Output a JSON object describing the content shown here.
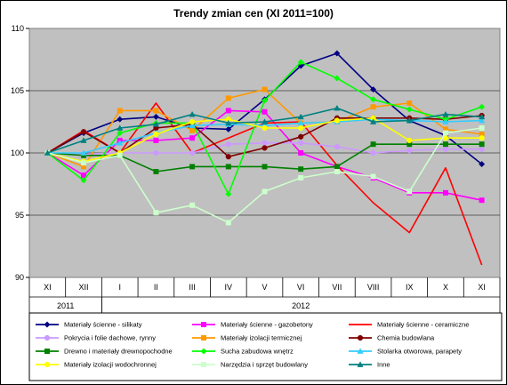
{
  "chart_data": {
    "type": "line",
    "title": "Trendy zmian cen (XI 2011=100)",
    "categories": [
      "XI",
      "XII",
      "I",
      "II",
      "III",
      "IV",
      "V",
      "VI",
      "VII",
      "VIII",
      "IX",
      "X",
      "XI"
    ],
    "year_labels": [
      {
        "label": "2011",
        "from": 0,
        "to": 1
      },
      {
        "label": "2012",
        "from": 2,
        "to": 12
      }
    ],
    "ylim": [
      90,
      110
    ],
    "yticks": [
      90,
      95,
      100,
      105,
      110
    ],
    "grid": true,
    "legend_position": "bottom",
    "plot_background": "#c0c0c0",
    "series": [
      {
        "name": "Materiały ścienne - silikaty",
        "color": "#000080",
        "marker": "diamond",
        "values": [
          100,
          101.6,
          102.7,
          102.9,
          102.0,
          101.9,
          104.3,
          107.0,
          108.0,
          105.1,
          102.6,
          101.4,
          99.1
        ]
      },
      {
        "name": "Materiały ścienne - gazobetony",
        "color": "#ff00ff",
        "marker": "square",
        "values": [
          100,
          98.2,
          101.0,
          101.0,
          101.2,
          103.4,
          103.3,
          100.0,
          98.9,
          98.0,
          96.8,
          96.8,
          96.2
        ]
      },
      {
        "name": "Materiały ścienne - ceramiczne",
        "color": "#ff0000",
        "marker": "none",
        "values": [
          100,
          101.8,
          100.0,
          104.0,
          100.0,
          101.2,
          102.4,
          102.5,
          99.0,
          96.0,
          93.6,
          98.8,
          91.0
        ]
      },
      {
        "name": "Pokrycia i folie dachowe, rynny",
        "color": "#cc99ff",
        "marker": "circle",
        "values": [
          100,
          99.9,
          100.0,
          100.0,
          100.0,
          100.7,
          100.8,
          100.8,
          100.5,
          100.0,
          100.2,
          100.3,
          100.3
        ]
      },
      {
        "name": "Materiały izolacji termicznej",
        "color": "#ff9900",
        "marker": "square",
        "values": [
          100,
          98.9,
          103.4,
          103.4,
          101.8,
          104.4,
          105.1,
          102.4,
          102.5,
          103.7,
          104.0,
          101.9,
          101.5
        ]
      },
      {
        "name": "Chemia budowlana",
        "color": "#800000",
        "marker": "circle",
        "values": [
          100,
          101.7,
          100.0,
          102.0,
          102.3,
          99.7,
          100.4,
          101.3,
          102.8,
          102.8,
          102.8,
          102.7,
          103.0
        ]
      },
      {
        "name": "Drewno i materiały drewnopochodne",
        "color": "#008000",
        "marker": "square",
        "values": [
          100,
          99.8,
          99.8,
          98.5,
          98.9,
          98.9,
          98.9,
          98.7,
          98.9,
          100.7,
          100.7,
          100.7,
          100.7
        ]
      },
      {
        "name": "Sucha zabudowa wnętrz",
        "color": "#00ff00",
        "marker": "diamond",
        "values": [
          100,
          97.8,
          101.6,
          102.4,
          102.4,
          96.7,
          104.2,
          107.3,
          106.0,
          104.3,
          103.5,
          102.7,
          103.7
        ]
      },
      {
        "name": "Stolarka otworowa, parapety",
        "color": "#33ccff",
        "marker": "triangle",
        "values": [
          100,
          100.0,
          100.8,
          101.6,
          102.2,
          102.3,
          102.2,
          102.4,
          102.5,
          102.7,
          102.6,
          102.5,
          102.6
        ]
      },
      {
        "name": "Materiały izolacji wodochronnej",
        "color": "#ffff00",
        "marker": "circle",
        "values": [
          100,
          99.3,
          100.0,
          101.5,
          102.5,
          102.7,
          102.0,
          102.0,
          102.6,
          102.8,
          101.0,
          101.2,
          101.2
        ]
      },
      {
        "name": "Narzędzia i sprzęt budowlany",
        "color": "#ccffcc",
        "marker": "square",
        "values": [
          100,
          99.2,
          99.8,
          95.2,
          95.8,
          94.4,
          96.9,
          98.0,
          98.5,
          98.1,
          96.9,
          101.6,
          102.0
        ]
      },
      {
        "name": "Inne",
        "color": "#008080",
        "marker": "triangle",
        "values": [
          100,
          101.0,
          102.0,
          102.3,
          103.1,
          102.4,
          102.5,
          102.9,
          103.6,
          102.5,
          102.6,
          103.1,
          102.9
        ]
      }
    ]
  }
}
